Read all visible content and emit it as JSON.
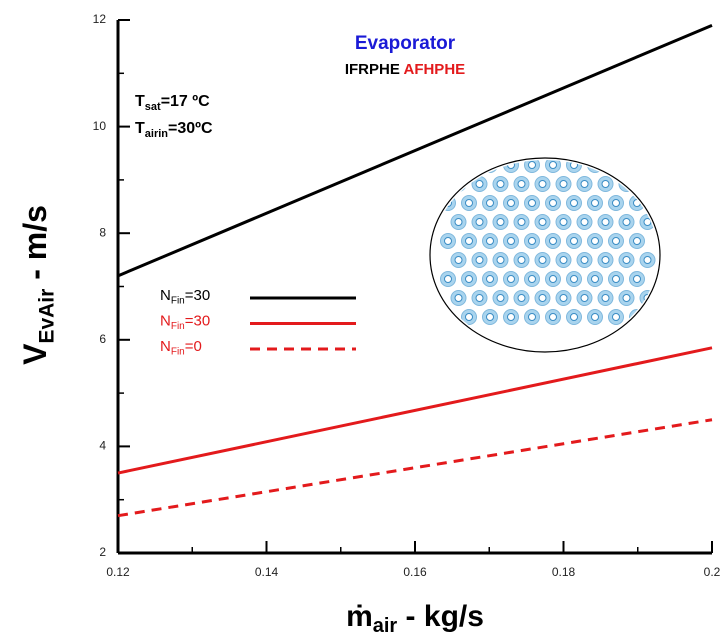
{
  "chart_data": {
    "type": "line",
    "title": "Evaporator",
    "subtitle_parts": [
      "IFRPHE",
      "AFHPHE"
    ],
    "annotations": [
      {
        "base": "T",
        "sub": "sat",
        "rest": "=17 ºC"
      },
      {
        "base": "T",
        "sub": "airin",
        "rest": "=30ºC"
      }
    ],
    "x_label": {
      "base": "ṁ",
      "sub": "air",
      "rest": " - kg/s"
    },
    "y_label": {
      "base": "V",
      "sub": "EvAir",
      "rest": " - m/s"
    },
    "x": [
      0.12,
      0.2
    ],
    "xlim": [
      0.12,
      0.2
    ],
    "xticks": [
      0.12,
      0.14,
      0.16,
      0.18,
      0.2
    ],
    "ylim": [
      2,
      12
    ],
    "yticks": [
      2,
      4,
      6,
      8,
      10,
      12
    ],
    "series": [
      {
        "name": {
          "base": "N",
          "sub": "Fin",
          "rest": "=30"
        },
        "color": "#000000",
        "dash": false,
        "name_color": "#000000",
        "values": [
          7.2,
          11.9
        ]
      },
      {
        "name": {
          "base": "N",
          "sub": "Fin",
          "rest": "=30"
        },
        "color": "#e31a1c",
        "dash": false,
        "name_color": "#e31a1c",
        "values": [
          3.5,
          5.85
        ]
      },
      {
        "name": {
          "base": "N",
          "sub": "Fin",
          "rest": "=0"
        },
        "color": "#e31a1c",
        "dash": true,
        "name_color": "#e31a1c",
        "values": [
          2.7,
          4.5
        ]
      }
    ]
  }
}
